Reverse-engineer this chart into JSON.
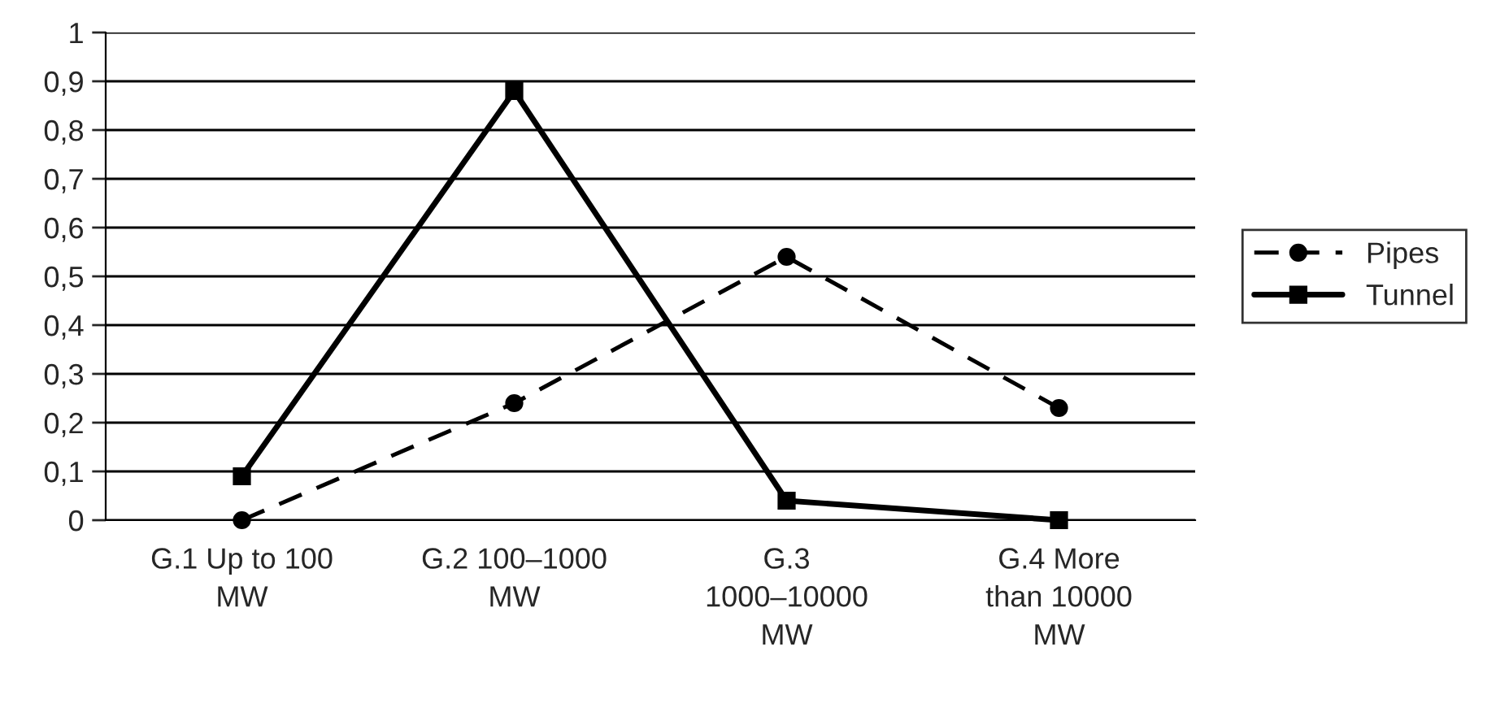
{
  "chart_data": {
    "type": "line",
    "categories": [
      "G.1 Up to 100\nMW",
      "G.2 100–1000\nMW",
      "G.3\n1000–10000\nMW",
      "G.4 More\nthan 10000\nMW"
    ],
    "series": [
      {
        "name": "Pipes",
        "color": "#000000",
        "values": [
          0,
          0.24,
          0.54,
          0.23
        ],
        "marker": "circle",
        "line_style": "dashed"
      },
      {
        "name": "Tunnel",
        "color": "#000000",
        "values": [
          0.09,
          0.88,
          0.04,
          0
        ],
        "marker": "square",
        "line_style": "solid"
      }
    ],
    "ylim": [
      0,
      1
    ],
    "yticks": [
      0,
      {
        "value": 0.1,
        "label": "0,1"
      },
      {
        "value": 0.2,
        "label": "0,2"
      },
      {
        "value": 0.3,
        "label": "0,3"
      },
      {
        "value": 0.4,
        "label": "0,4"
      },
      {
        "value": 0.5,
        "label": "0,5"
      },
      {
        "value": 0.6,
        "label": "0,6"
      },
      {
        "value": 0.7,
        "label": "0,7"
      },
      {
        "value": 0.8,
        "label": "0,8"
      },
      {
        "value": 0.9,
        "label": "0,9"
      },
      1
    ],
    "grid": "y",
    "legend": "right"
  }
}
